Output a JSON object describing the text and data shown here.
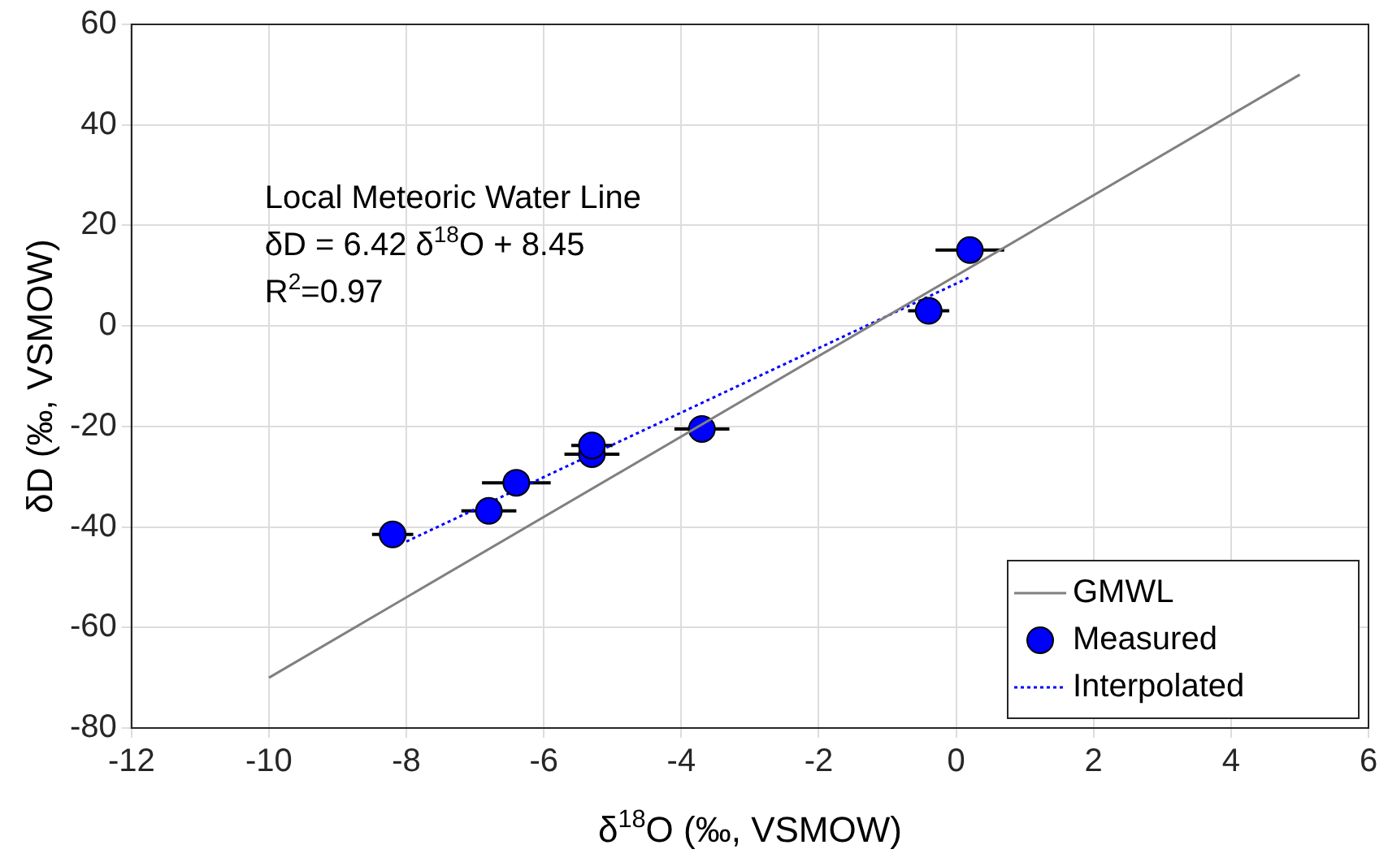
{
  "chart_data": {
    "type": "scatter",
    "xlabel": "δ$^{18}$O (‰, VSMOW)",
    "ylabel": "δD (‰, VSMOW)",
    "xlim": [
      -12,
      6
    ],
    "xticks": [
      -12,
      -10,
      -8,
      -6,
      -4,
      -2,
      0,
      2,
      4,
      6
    ],
    "ylim": [
      -80,
      60
    ],
    "yticks": [
      -80,
      -60,
      -40,
      -20,
      0,
      20,
      40,
      60
    ],
    "grid": true,
    "legend": "bottom right",
    "annotations": [
      "Local Meteoric Water Line",
      "δD = 6.42 δ$^{18}$O + 8.45",
      "R$^{2}$=0.97"
    ],
    "series": [
      {
        "name": "GMWL",
        "type": "line",
        "color": "#808080",
        "x": [
          -10,
          5
        ],
        "values": [
          -70,
          50
        ],
        "marker": "none",
        "line_style": "solid"
      },
      {
        "name": "Measured",
        "color": "#0000ff",
        "marker": "circle",
        "x": [
          -8.2,
          -6.8,
          -6.4,
          -5.3,
          -5.3,
          -3.7,
          -0.4,
          0.2
        ],
        "values": [
          -41.5,
          -36.8,
          -31.2,
          -25.5,
          -23.8,
          -20.5,
          3.0,
          15.1
        ],
        "xerrors": [
          0.3,
          0.4,
          0.5,
          0.4,
          0.3,
          0.4,
          0.3,
          0.5
        ]
      },
      {
        "name": "Interpolated",
        "type": "line",
        "color": "#0000ff",
        "x": [
          -8,
          0.2
        ],
        "values": [
          -42.9,
          9.7
        ],
        "marker": "none",
        "line_style": "dotted"
      }
    ]
  }
}
